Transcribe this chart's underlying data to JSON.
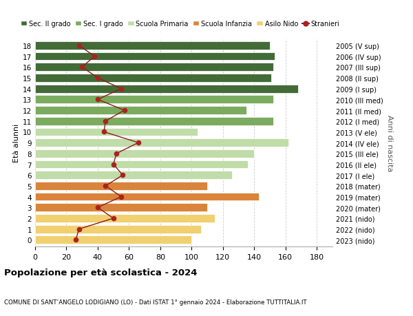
{
  "ages": [
    18,
    17,
    16,
    15,
    14,
    13,
    12,
    11,
    10,
    9,
    8,
    7,
    6,
    5,
    4,
    3,
    2,
    1,
    0
  ],
  "right_labels": [
    "2005 (V sup)",
    "2006 (IV sup)",
    "2007 (III sup)",
    "2008 (II sup)",
    "2009 (I sup)",
    "2010 (III med)",
    "2011 (II med)",
    "2012 (I med)",
    "2013 (V ele)",
    "2014 (IV ele)",
    "2015 (III ele)",
    "2016 (II ele)",
    "2017 (I ele)",
    "2018 (mater)",
    "2019 (mater)",
    "2020 (mater)",
    "2021 (nido)",
    "2022 (nido)",
    "2023 (nido)"
  ],
  "bar_values": [
    150,
    153,
    152,
    151,
    168,
    152,
    135,
    152,
    104,
    162,
    140,
    136,
    126,
    110,
    143,
    110,
    115,
    106,
    100
  ],
  "bar_colors": [
    "#436b37",
    "#436b37",
    "#436b37",
    "#436b37",
    "#436b37",
    "#7aab5e",
    "#7aab5e",
    "#7aab5e",
    "#c0dca8",
    "#c0dca8",
    "#c0dca8",
    "#c0dca8",
    "#c0dca8",
    "#d9843a",
    "#d9843a",
    "#d9843a",
    "#f0d070",
    "#f0d070",
    "#f0d070"
  ],
  "stranieri_values": [
    28,
    38,
    30,
    40,
    55,
    40,
    57,
    45,
    44,
    66,
    52,
    50,
    56,
    45,
    55,
    40,
    50,
    28,
    26
  ],
  "legend_labels": [
    "Sec. II grado",
    "Sec. I grado",
    "Scuola Primaria",
    "Scuola Infanzia",
    "Asilo Nido",
    "Stranieri"
  ],
  "legend_colors": [
    "#436b37",
    "#7aab5e",
    "#c0dca8",
    "#d9843a",
    "#f0d070",
    "#aa2222"
  ],
  "title": "Popolazione per età scolastica - 2024",
  "subtitle": "COMUNE DI SANT’ANGELO LODIGIANO (LO) - Dati ISTAT 1° gennaio 2024 - Elaborazione TUTTITALIA.IT",
  "ylabel": "Età alunni",
  "right_ylabel": "Anni di nascita",
  "xlim": [
    0,
    190
  ],
  "xticks": [
    0,
    20,
    40,
    60,
    80,
    100,
    120,
    140,
    160,
    180
  ],
  "stranieri_line_color": "#8b1a1a",
  "stranieri_marker_color": "#aa2222",
  "bar_height": 0.75,
  "background_color": "#ffffff"
}
